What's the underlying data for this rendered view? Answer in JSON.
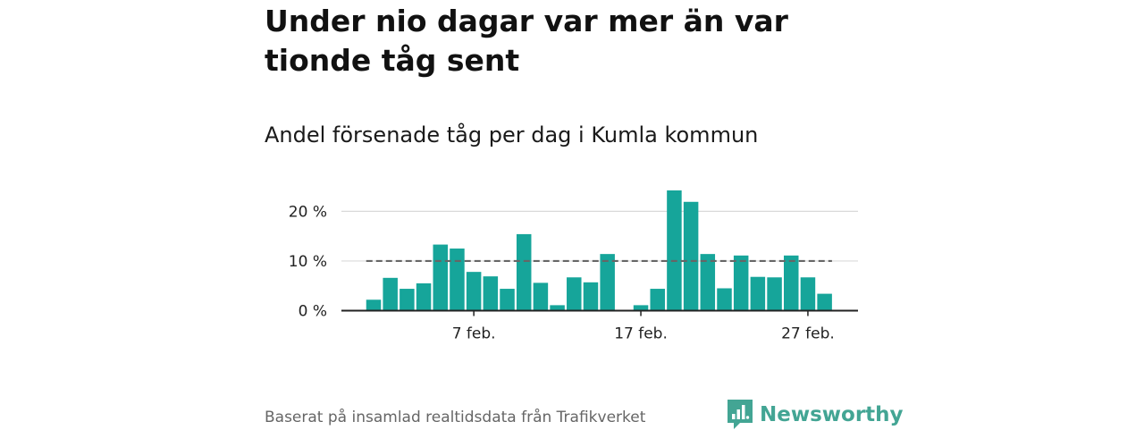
{
  "header": {
    "title": "Under nio dagar var mer än var tionde tåg sent",
    "subtitle": "Andel försenade tåg per dag i Kumla kommun"
  },
  "footer": {
    "source": "Baserat på insamlad realtidsdata från Trafikverket",
    "brand": "Newsworthy"
  },
  "colors": {
    "bar": "#16a59a",
    "reference_line": "#666666",
    "grid": "#d9d9d9",
    "axis": "#222222",
    "brand": "#43a594"
  },
  "icons": {
    "brand_logo": "newsworthy-logo-icon"
  },
  "chart_data": {
    "type": "bar",
    "x_unit": "day of February",
    "x": [
      1,
      2,
      3,
      4,
      5,
      6,
      7,
      8,
      9,
      10,
      11,
      12,
      13,
      14,
      15,
      16,
      17,
      18,
      19,
      20,
      21,
      22,
      23,
      24,
      25,
      26,
      27,
      28
    ],
    "values": [
      2.2,
      6.6,
      4.4,
      5.5,
      13.3,
      12.5,
      7.8,
      6.9,
      4.4,
      15.4,
      5.6,
      1.1,
      6.7,
      5.7,
      11.4,
      0,
      1.1,
      4.4,
      24.2,
      21.9,
      11.4,
      4.5,
      11.1,
      6.8,
      6.7,
      11.1,
      6.7,
      3.4
    ],
    "reference_line": {
      "value": 10,
      "style": "dashed"
    },
    "ylim": [
      0,
      24.2
    ],
    "yticks": [
      {
        "value": 0,
        "label": "0 %"
      },
      {
        "value": 10,
        "label": "10 %"
      },
      {
        "value": 20,
        "label": "20 %"
      }
    ],
    "xticks": [
      {
        "x": 7,
        "label": "7 feb."
      },
      {
        "x": 17,
        "label": "17 feb."
      },
      {
        "x": 27,
        "label": "27 feb."
      }
    ],
    "grid": "horizontal",
    "legend": "none"
  }
}
